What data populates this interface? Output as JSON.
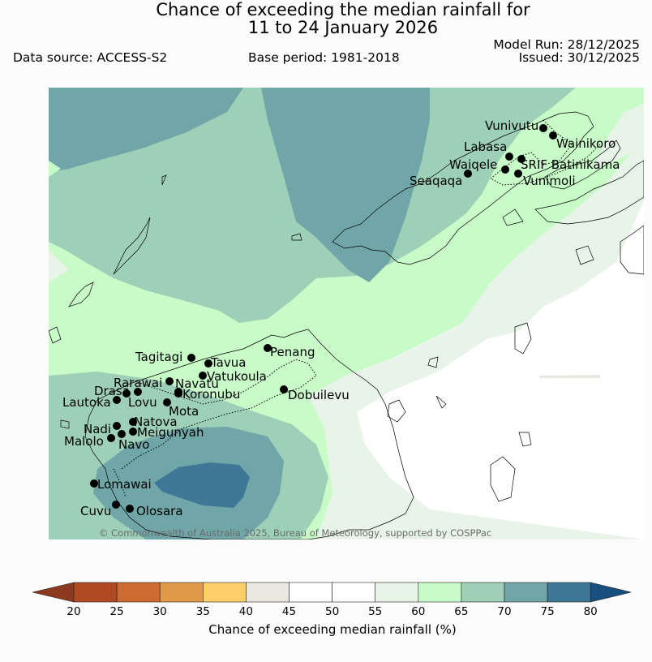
{
  "title_line1": "Chance of exceeding the median rainfall for",
  "title_line2": "11 to 24 January 2026",
  "data_source": "Data source: ACCESS-S2",
  "base_period": "Base period: 1981-2018",
  "model_run": "Model Run: 28/12/2025",
  "issued": "Issued: 30/12/2025",
  "copyright": "© Commonwealth of Australia 2025, Bureau of Meteorology, supported by COSPPac",
  "colorbar_label": "Chance of exceeding median rainfall (%)",
  "colorbar_ticks": [
    "20",
    "25",
    "30",
    "35",
    "40",
    "45",
    "50",
    "55",
    "60",
    "65",
    "70",
    "75",
    "80"
  ],
  "colorbar_colors": [
    "#8b3a1f",
    "#b04a25",
    "#cc6a30",
    "#e19a48",
    "#fccf6b",
    "#ebe7e1",
    "#ffffff",
    "#ffffff",
    "#e8f4e8",
    "#c9fbc9",
    "#9dd0b7",
    "#70a6a8",
    "#3f7896",
    "#17507e"
  ],
  "stations": [
    {
      "name": "Vunivutu"
    },
    {
      "name": "Wainikoro"
    },
    {
      "name": "Labasa"
    },
    {
      "name": "Waiqele"
    },
    {
      "name": "SRIF Batinikama"
    },
    {
      "name": "Seaqaqa"
    },
    {
      "name": "Vunimoli"
    },
    {
      "name": "Tagitagi"
    },
    {
      "name": "Tavua"
    },
    {
      "name": "Penang"
    },
    {
      "name": "Vatukoula"
    },
    {
      "name": "Rarawai"
    },
    {
      "name": "Navatu"
    },
    {
      "name": "Drasa"
    },
    {
      "name": "Koronubu"
    },
    {
      "name": "Lautoka"
    },
    {
      "name": "Lovu"
    },
    {
      "name": "Dobuilevu"
    },
    {
      "name": "Mota"
    },
    {
      "name": "Natova"
    },
    {
      "name": "Nadi"
    },
    {
      "name": "Meigunyah"
    },
    {
      "name": "Malolo"
    },
    {
      "name": "Navo"
    },
    {
      "name": "Lomawai"
    },
    {
      "name": "Cuvu"
    },
    {
      "name": "Olosara"
    }
  ]
}
